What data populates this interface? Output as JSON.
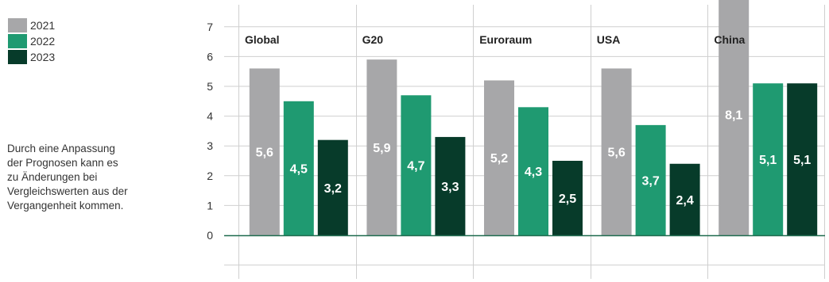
{
  "legend": [
    {
      "label": "2021",
      "color": "#a7a7a9"
    },
    {
      "label": "2022",
      "color": "#1f9a71"
    },
    {
      "label": "2023",
      "color": "#073b2a"
    }
  ],
  "note": {
    "lines": [
      "Durch eine Anpassung",
      "der Prognosen kann es",
      "zu Änderungen bei",
      "Vergleichswerten aus der",
      "Vergangenheit kommen."
    ]
  },
  "chart_data": {
    "type": "bar",
    "categories": [
      "Global",
      "G20",
      "Euroraum",
      "USA",
      "China"
    ],
    "series": [
      {
        "name": "2021",
        "color": "#a7a7a9",
        "values": [
          5.6,
          5.9,
          5.2,
          5.6,
          8.1
        ],
        "labels": [
          "5,6",
          "5,9",
          "5,2",
          "5,6",
          "8,1"
        ]
      },
      {
        "name": "2022",
        "color": "#1f9a71",
        "values": [
          4.5,
          4.7,
          4.3,
          3.7,
          5.1
        ],
        "labels": [
          "4,5",
          "4,7",
          "4,3",
          "3,7",
          "5,1"
        ]
      },
      {
        "name": "2023",
        "color": "#073b2a",
        "values": [
          3.2,
          3.3,
          2.5,
          2.4,
          5.1
        ],
        "labels": [
          "3,2",
          "3,3",
          "2,5",
          "2,4",
          "5,1"
        ]
      }
    ],
    "yticks": [
      "0",
      "1",
      "2",
      "3",
      "4",
      "5",
      "6",
      "7"
    ],
    "ylim": [
      -1.5,
      8.0
    ],
    "grid": true,
    "legend_position": "top-left",
    "title": "",
    "xlabel": "",
    "ylabel": ""
  }
}
